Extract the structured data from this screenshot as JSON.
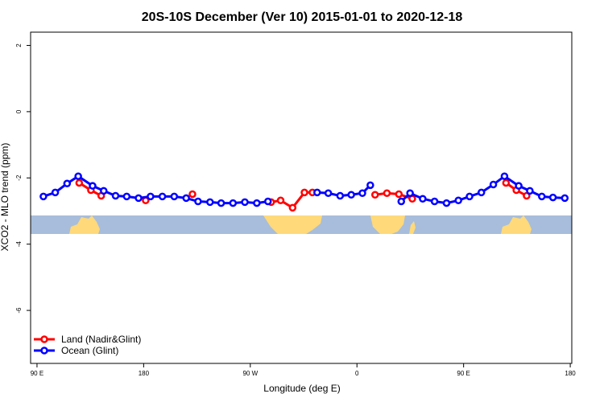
{
  "chart_data": {
    "type": "line",
    "title": "20S-10S December (Ver 10)   2015-01-01 to 2020-12-18",
    "x_label": "Longitude (deg E)",
    "y_label": "XCO2 - MLO trend (ppm)",
    "xlim": [
      84.6,
      541.3
    ],
    "xticks": [
      {
        "value": 90,
        "label": "90 E"
      },
      {
        "value": 180,
        "label": "180"
      },
      {
        "value": 270,
        "label": "90 W"
      },
      {
        "value": 360,
        "label": "0"
      },
      {
        "value": 450,
        "label": "90 E"
      },
      {
        "value": 540,
        "label": "180"
      }
    ],
    "ylim": [
      -7.6,
      2.4
    ],
    "yticks": [
      2,
      0,
      -2,
      -4,
      -6
    ],
    "legend": "bottom-left",
    "series": [
      {
        "name": "Land (Nadir&Glint)",
        "color": "#ff0000",
        "x": [
          125.6,
          135.5,
          144.2,
          null,
          181.7,
          null,
          221.2,
          null,
          287.6,
          295.6,
          305.7,
          315.7,
          322.4,
          null,
          375.3,
          385.3,
          395.4,
          406.7,
          null,
          485.8,
          494.5,
          503.2
        ],
        "values": [
          -2.15,
          -2.37,
          -2.54,
          null,
          -2.68,
          null,
          -2.49,
          null,
          -2.73,
          -2.68,
          -2.9,
          -2.44,
          -2.44,
          null,
          -2.51,
          -2.46,
          -2.49,
          -2.63,
          null,
          -2.15,
          -2.37,
          -2.54
        ]
      },
      {
        "name": "Ocean (Glint)",
        "color": "#0000ff",
        "x": [
          95.4,
          105.4,
          115.4,
          124.8,
          136.9,
          146.3,
          156.3,
          165.7,
          175.7,
          185.8,
          195.8,
          205.8,
          215.9,
          225.9,
          236,
          245.4,
          255.4,
          265.4,
          275.5,
          284.9,
          null,
          326.4,
          335.8,
          345.8,
          355.2,
          364.6,
          371.3,
          null,
          397.4,
          404.8,
          415.5,
          425.5,
          435.6,
          445.6,
          455,
          465,
          475.1,
          484.5,
          496.5,
          505.9,
          516,
          525.4,
          535.4
        ],
        "values": [
          -2.56,
          -2.44,
          -2.17,
          -1.95,
          -2.24,
          -2.39,
          -2.54,
          -2.56,
          -2.61,
          -2.56,
          -2.56,
          -2.56,
          -2.61,
          -2.71,
          -2.73,
          -2.76,
          -2.76,
          -2.73,
          -2.76,
          -2.71,
          null,
          -2.44,
          -2.46,
          -2.54,
          -2.51,
          -2.46,
          -2.22,
          null,
          -2.71,
          -2.46,
          -2.63,
          -2.71,
          -2.76,
          -2.68,
          -2.56,
          -2.44,
          -2.2,
          -1.95,
          -2.24,
          -2.39,
          -2.56,
          -2.59,
          -2.61
        ]
      }
    ]
  }
}
